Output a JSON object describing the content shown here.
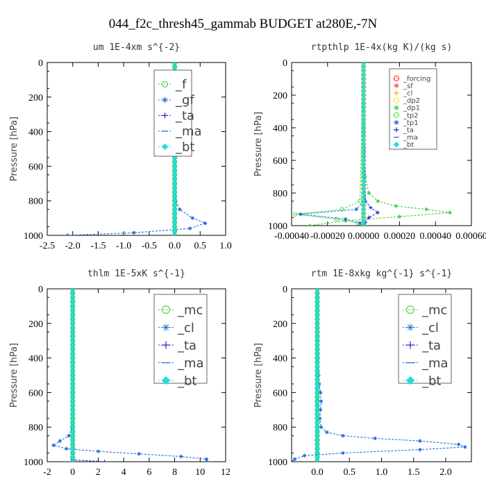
{
  "figure_title": "044_f2c_thresh45_gammab  BUDGET at280E,-7N",
  "chart_data": [
    {
      "type": "line",
      "title": "um  1E-4xm s^{-2}",
      "ylabel": "Pressure [hPa]",
      "xlim": [
        -2.5,
        1.0
      ],
      "ylim": [
        1000,
        0
      ],
      "xticks": [
        "-2.5",
        "-2.0",
        "-1.5",
        "-1.0",
        "-0.5",
        "0.0",
        "0.5",
        "1.0"
      ],
      "xtick_values": [
        -2.5,
        -2.0,
        -1.5,
        -1.0,
        -0.5,
        0.0,
        0.5,
        1.0
      ],
      "yticks": [
        "0",
        "200",
        "400",
        "600",
        "800",
        "1000"
      ],
      "ytick_values": [
        0,
        200,
        400,
        600,
        800,
        1000
      ],
      "legend": {
        "placement": "top-right",
        "font_size": 18
      },
      "series": [
        {
          "name": "_f",
          "color": "#33cc33",
          "marker": "circle",
          "p": [
            0,
            100,
            200,
            300,
            400,
            500,
            600,
            700,
            800,
            900,
            1000
          ],
          "x": [
            0,
            0,
            0,
            0,
            0,
            0,
            0,
            0,
            0,
            0,
            0
          ]
        },
        {
          "name": "_gf",
          "color": "#1e6fd9",
          "marker": "star",
          "p": [
            0,
            100,
            200,
            300,
            400,
            500,
            600,
            700,
            800,
            850,
            900,
            930,
            960,
            985,
            1000
          ],
          "x": [
            0,
            0,
            0,
            0,
            0,
            0,
            0,
            0,
            0.02,
            0.1,
            0.35,
            0.6,
            0.3,
            -0.8,
            -2.1
          ]
        },
        {
          "name": "_ta",
          "color": "#2222cc",
          "marker": "plus",
          "p": [
            0,
            500,
            900,
            960,
            1000
          ],
          "x": [
            0,
            0,
            0,
            0,
            0
          ]
        },
        {
          "name": "_ma",
          "color": "#1e6fd9",
          "marker": "dash",
          "p": [
            0,
            500,
            1000
          ],
          "x": [
            0,
            0,
            0
          ]
        },
        {
          "name": "_bt",
          "color": "#22dddd",
          "marker": "diamond",
          "p": [
            0,
            100,
            200,
            300,
            400,
            500,
            600,
            700,
            800,
            900,
            1000
          ],
          "x": [
            0,
            0,
            0,
            0,
            0,
            0,
            0,
            0,
            0,
            0,
            0
          ]
        }
      ]
    },
    {
      "type": "line",
      "title": "rtpthlp  1E-4x(kg K)/(kg s)",
      "ylabel": "Pressure [hPa]",
      "xlim": [
        -0.0004,
        0.0006
      ],
      "ylim": [
        1000,
        0
      ],
      "xticks": [
        "-0.00040",
        "-0.00020",
        "0.00000",
        "0.00020",
        "0.00040",
        "0.00060"
      ],
      "xtick_values": [
        -0.0004,
        -0.0002,
        0.0,
        0.0002,
        0.0004,
        0.0006
      ],
      "yticks": [
        "0",
        "200",
        "400",
        "600",
        "800",
        "1000"
      ],
      "ytick_values": [
        0,
        200,
        400,
        600,
        800,
        1000
      ],
      "legend": {
        "placement": "top-right",
        "font_size": 10
      },
      "series": [
        {
          "name": "_forcing",
          "color": "#ff2222",
          "marker": "circle",
          "p": [
            0,
            100,
            200,
            300,
            400,
            500,
            600,
            700,
            800,
            900,
            1000
          ],
          "x": [
            0,
            0,
            0,
            0,
            0,
            0,
            0,
            0,
            0,
            0,
            0
          ]
        },
        {
          "name": "_sf",
          "color": "#ff5555",
          "marker": "star",
          "p": [
            0,
            1000
          ],
          "x": [
            0,
            0
          ]
        },
        {
          "name": "_cl",
          "color": "#ffaa00",
          "marker": "plus",
          "p": [
            0,
            900,
            1000
          ],
          "x": [
            0,
            0,
            0
          ]
        },
        {
          "name": "_dp2",
          "color": "#ffdd33",
          "marker": "circle",
          "p": [
            0,
            1000
          ],
          "x": [
            0,
            0
          ]
        },
        {
          "name": "_dp1",
          "color": "#44cc44",
          "marker": "star",
          "p": [
            0,
            600,
            700,
            800,
            850,
            880,
            900,
            920,
            945,
            970,
            1000
          ],
          "x": [
            0,
            2e-06,
            8e-06,
            3e-05,
            8e-05,
            0.00018,
            0.00035,
            0.00048,
            0.0002,
            -0.0001,
            -0.0003
          ]
        },
        {
          "name": "_tp2",
          "color": "#55dd55",
          "marker": "circle",
          "p": [
            0,
            850,
            900,
            930,
            960,
            985,
            1000
          ],
          "x": [
            0,
            -2e-05,
            -0.00012,
            -0.00038,
            -0.00015,
            -3e-05,
            0
          ]
        },
        {
          "name": "_tp1",
          "color": "#1e6fd9",
          "marker": "star",
          "p": [
            0,
            850,
            900,
            930,
            960,
            985,
            1000
          ],
          "x": [
            0,
            0,
            -4e-05,
            -0.00035,
            -0.0001,
            -2e-05,
            0
          ]
        },
        {
          "name": "_ta",
          "color": "#2222cc",
          "marker": "plus",
          "p": [
            0,
            850,
            890,
            920,
            950,
            980,
            1000
          ],
          "x": [
            0,
            1e-05,
            4e-05,
            8e-05,
            3e-05,
            1e-05,
            0
          ]
        },
        {
          "name": "_ma",
          "color": "#1e6fd9",
          "marker": "dash",
          "p": [
            0,
            1000
          ],
          "x": [
            0,
            0
          ]
        },
        {
          "name": "_bt",
          "color": "#22dddd",
          "marker": "diamond",
          "p": [
            0,
            1000
          ],
          "x": [
            0,
            0
          ]
        }
      ]
    },
    {
      "type": "line",
      "title": "thlm  1E-5xK s^{-1}",
      "ylabel": "Pressure [hPa]",
      "xlim": [
        -2,
        12
      ],
      "ylim": [
        1000,
        0
      ],
      "xticks": [
        "-2",
        "0",
        "2",
        "4",
        "6",
        "8",
        "10",
        "12"
      ],
      "xtick_values": [
        -2,
        0,
        2,
        4,
        6,
        8,
        10,
        12
      ],
      "yticks": [
        "0",
        "200",
        "400",
        "600",
        "800",
        "1000"
      ],
      "ytick_values": [
        0,
        200,
        400,
        600,
        800,
        1000
      ],
      "legend": {
        "placement": "top-right",
        "font_size": 18
      },
      "series": [
        {
          "name": "_mc",
          "color": "#33cc33",
          "marker": "circle",
          "p": [
            0,
            100,
            200,
            300,
            400,
            500,
            600,
            700,
            800,
            900,
            1000
          ],
          "x": [
            0,
            0,
            0,
            0,
            0,
            0,
            0,
            0,
            0,
            0,
            0
          ]
        },
        {
          "name": "_cl",
          "color": "#1e6fd9",
          "marker": "star",
          "p": [
            0,
            100,
            200,
            300,
            400,
            500,
            600,
            700,
            800,
            850,
            880,
            905,
            925,
            940,
            955,
            970,
            985,
            1000
          ],
          "x": [
            0,
            0,
            0,
            0,
            0,
            0,
            0,
            0,
            -0.05,
            -0.3,
            -1.0,
            -1.5,
            -0.5,
            2.0,
            5.2,
            8.5,
            10.5,
            10.5
          ]
        },
        {
          "name": "_ta",
          "color": "#2222cc",
          "marker": "plus",
          "p": [
            0,
            500,
            990,
            1000
          ],
          "x": [
            0,
            0,
            0,
            2.5
          ]
        },
        {
          "name": "_ma",
          "color": "#1e6fd9",
          "marker": "dash",
          "p": [
            0,
            500,
            1000
          ],
          "x": [
            0,
            0,
            0
          ]
        },
        {
          "name": "_bt",
          "color": "#22dddd",
          "marker": "diamond",
          "p": [
            0,
            100,
            200,
            300,
            400,
            500,
            600,
            700,
            800,
            900,
            1000
          ],
          "x": [
            0,
            0,
            0,
            0,
            0,
            0,
            0,
            0,
            0,
            0,
            0
          ]
        }
      ]
    },
    {
      "type": "line",
      "title": "rtm  1E-8xkg kg^{-1} s^{-1}",
      "ylabel": "Pressure [hPa]",
      "xlim": [
        -0.4,
        2.4
      ],
      "ylim": [
        1000,
        0
      ],
      "xticks": [
        "0.0",
        "0.5",
        "1.0",
        "1.5",
        "2.0"
      ],
      "xtick_values": [
        0.0,
        0.5,
        1.0,
        1.5,
        2.0
      ],
      "yticks": [
        "0",
        "200",
        "400",
        "600",
        "800",
        "1000"
      ],
      "ytick_values": [
        0,
        200,
        400,
        600,
        800,
        1000
      ],
      "legend": {
        "placement": "top-right",
        "font_size": 18
      },
      "series": [
        {
          "name": "_mc",
          "color": "#33cc33",
          "marker": "circle",
          "p": [
            0,
            100,
            200,
            300,
            400,
            500,
            600,
            700,
            800,
            900,
            1000
          ],
          "x": [
            0,
            0,
            0,
            0,
            0,
            0,
            0,
            0,
            0,
            0,
            0
          ]
        },
        {
          "name": "_cl",
          "color": "#1e6fd9",
          "marker": "star",
          "p": [
            0,
            100,
            200,
            300,
            400,
            500,
            550,
            600,
            650,
            700,
            750,
            800,
            830,
            850,
            865,
            880,
            900,
            915,
            930,
            950,
            965,
            985,
            1000
          ],
          "x": [
            0,
            0,
            0,
            0.005,
            0.01,
            0.02,
            0.03,
            0.05,
            0.06,
            0.05,
            0.04,
            0.06,
            0.15,
            0.4,
            0.9,
            1.6,
            2.2,
            2.3,
            1.6,
            0.4,
            -0.2,
            -0.35,
            -0.38
          ]
        },
        {
          "name": "_ta",
          "color": "#2222cc",
          "marker": "plus",
          "p": [
            0,
            500,
            1000
          ],
          "x": [
            0,
            0,
            0
          ]
        },
        {
          "name": "_ma",
          "color": "#1e6fd9",
          "marker": "dash",
          "p": [
            0,
            500,
            1000
          ],
          "x": [
            0,
            0,
            0
          ]
        },
        {
          "name": "_bt",
          "color": "#22dddd",
          "marker": "diamond",
          "p": [
            0,
            100,
            200,
            300,
            400,
            500,
            600,
            700,
            800,
            900,
            1000
          ],
          "x": [
            0,
            0,
            0,
            0,
            0,
            0,
            0,
            0,
            0,
            0,
            0
          ]
        }
      ]
    }
  ]
}
